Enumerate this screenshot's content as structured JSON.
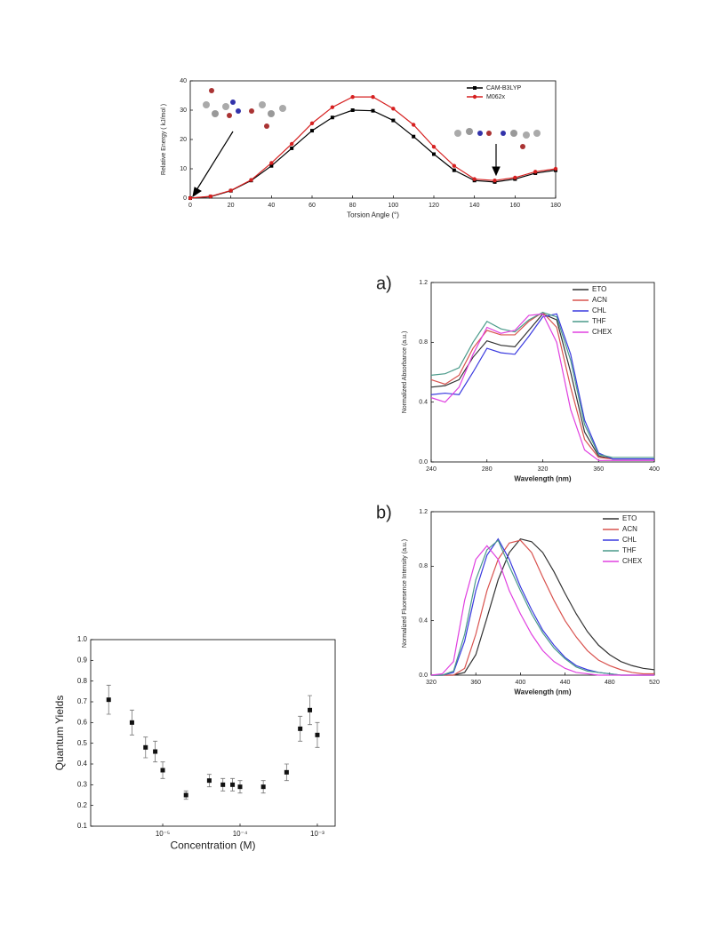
{
  "chart_data": [
    {
      "type": "line",
      "xlabel": "Torsion Angle (°)",
      "ylabel": "Relative Energy ( kJ/mol )",
      "x": [
        0,
        10,
        20,
        30,
        40,
        50,
        60,
        70,
        80,
        90,
        100,
        110,
        120,
        130,
        140,
        150,
        160,
        170,
        180
      ],
      "xlim": [
        0,
        180
      ],
      "xticks": [
        0,
        20,
        40,
        60,
        80,
        100,
        120,
        140,
        160,
        180
      ],
      "ylim": [
        0,
        40
      ],
      "yticks": [
        0,
        10,
        20,
        30,
        40
      ],
      "legend": "upper right",
      "series": [
        {
          "name": "CAM-B3LYP",
          "color": "#000000",
          "marker": "square",
          "values": [
            0,
            0.5,
            2.5,
            6,
            11,
            17,
            23,
            27.5,
            30,
            29.8,
            26.5,
            21,
            15,
            9.5,
            6,
            5.5,
            6.5,
            8.5,
            9.5
          ]
        },
        {
          "name": "M062x",
          "color": "#d62020",
          "marker": "circle",
          "values": [
            0,
            0.6,
            2.6,
            6.2,
            12,
            18.5,
            25.5,
            31,
            34.5,
            34.5,
            30.5,
            25,
            17.5,
            11,
            6.5,
            6,
            7,
            9,
            10
          ]
        }
      ]
    },
    {
      "type": "line",
      "title": "a)",
      "xlabel": "Wavelength (nm)",
      "ylabel": "Normalized Absorbance (a.u.)",
      "x": [
        240,
        250,
        260,
        270,
        280,
        290,
        300,
        310,
        320,
        330,
        340,
        350,
        360,
        370,
        380,
        390,
        400
      ],
      "xlim": [
        240,
        400
      ],
      "xticks": [
        240,
        280,
        320,
        360,
        400
      ],
      "ylim": [
        0,
        1.2
      ],
      "yticks": [
        {
          "value": 0,
          "label": "0.0"
        },
        0.4,
        0.8,
        1.2
      ],
      "legend": "upper right",
      "series": [
        {
          "name": "ETO",
          "color": "#333333",
          "values": [
            0.5,
            0.51,
            0.55,
            0.7,
            0.81,
            0.78,
            0.77,
            0.88,
            0.99,
            0.95,
            0.6,
            0.2,
            0.04,
            0.02,
            0.02,
            0.02,
            0.02
          ]
        },
        {
          "name": "ACN",
          "color": "#d9534f",
          "values": [
            0.55,
            0.52,
            0.58,
            0.76,
            0.88,
            0.85,
            0.85,
            0.94,
            1.0,
            0.9,
            0.5,
            0.15,
            0.03,
            0.02,
            0.02,
            0.02,
            0.02
          ]
        },
        {
          "name": "CHL",
          "color": "#3a3adf",
          "values": [
            0.45,
            0.46,
            0.45,
            0.6,
            0.76,
            0.73,
            0.72,
            0.84,
            0.97,
            0.99,
            0.72,
            0.28,
            0.06,
            0.02,
            0.02,
            0.02,
            0.02
          ]
        },
        {
          "name": "THF",
          "color": "#4a9a8a",
          "values": [
            0.58,
            0.59,
            0.63,
            0.8,
            0.94,
            0.89,
            0.87,
            0.95,
            1.0,
            0.97,
            0.68,
            0.25,
            0.05,
            0.03,
            0.03,
            0.03,
            0.03
          ]
        },
        {
          "name": "CHEX",
          "color": "#e040e0",
          "values": [
            0.43,
            0.4,
            0.5,
            0.72,
            0.9,
            0.86,
            0.88,
            0.98,
            0.99,
            0.8,
            0.35,
            0.08,
            0.01,
            0.01,
            0.01,
            0.01,
            0.01
          ]
        }
      ]
    },
    {
      "type": "line",
      "title": "b)",
      "xlabel": "Wavelength (nm)",
      "ylabel": "Normalized Fluoresence Intensity (a.u.)",
      "x": [
        320,
        330,
        340,
        350,
        360,
        370,
        380,
        390,
        400,
        410,
        420,
        430,
        440,
        450,
        460,
        470,
        480,
        490,
        500,
        510,
        520
      ],
      "xlim": [
        320,
        520
      ],
      "xticks": [
        320,
        360,
        400,
        440,
        480,
        520
      ],
      "ylim": [
        0,
        1.2
      ],
      "yticks": [
        {
          "value": 0,
          "label": "0.0"
        },
        0.4,
        0.8,
        1.2
      ],
      "legend": "upper right",
      "series": [
        {
          "name": "ETO",
          "color": "#333333",
          "values": [
            0,
            0,
            0,
            0.02,
            0.15,
            0.42,
            0.7,
            0.9,
            1.0,
            0.98,
            0.9,
            0.76,
            0.6,
            0.45,
            0.32,
            0.22,
            0.15,
            0.1,
            0.07,
            0.05,
            0.04
          ]
        },
        {
          "name": "ACN",
          "color": "#d9534f",
          "values": [
            0,
            0,
            0,
            0.05,
            0.3,
            0.62,
            0.85,
            0.97,
            0.99,
            0.9,
            0.72,
            0.55,
            0.4,
            0.28,
            0.18,
            0.11,
            0.07,
            0.04,
            0.02,
            0.01,
            0.01
          ]
        },
        {
          "name": "CHL",
          "color": "#3a3adf",
          "values": [
            0,
            0,
            0.02,
            0.25,
            0.62,
            0.88,
            1.0,
            0.85,
            0.65,
            0.48,
            0.33,
            0.22,
            0.13,
            0.07,
            0.04,
            0.02,
            0.01,
            0,
            0,
            0,
            0
          ]
        },
        {
          "name": "THF",
          "color": "#4a9a8a",
          "values": [
            0,
            0,
            0.03,
            0.3,
            0.7,
            0.92,
            0.99,
            0.8,
            0.62,
            0.45,
            0.31,
            0.2,
            0.12,
            0.06,
            0.03,
            0.02,
            0.01,
            0,
            0,
            0,
            0
          ]
        },
        {
          "name": "CHEX",
          "color": "#e040e0",
          "values": [
            0,
            0.01,
            0.1,
            0.55,
            0.85,
            0.95,
            0.85,
            0.62,
            0.45,
            0.3,
            0.18,
            0.1,
            0.05,
            0.02,
            0.01,
            0,
            0,
            0,
            0,
            0,
            0
          ]
        }
      ]
    },
    {
      "type": "scatter",
      "xlabel": "Concentration (M)",
      "ylabel": "Quantum Yields",
      "xscale": "log",
      "color": "#111111",
      "x": [
        2e-06,
        4e-06,
        6e-06,
        8e-06,
        1e-05,
        2e-05,
        4e-05,
        6e-05,
        8e-05,
        0.0001,
        0.0002,
        0.0004,
        0.0006,
        0.0008,
        0.001
      ],
      "values": [
        0.71,
        0.6,
        0.48,
        0.46,
        0.37,
        0.25,
        0.32,
        0.3,
        0.3,
        0.29,
        0.29,
        0.36,
        0.57,
        0.66,
        0.54
      ],
      "errors": [
        0.07,
        0.06,
        0.05,
        0.05,
        0.04,
        0.02,
        0.03,
        0.03,
        0.03,
        0.03,
        0.03,
        0.04,
        0.06,
        0.07,
        0.06
      ],
      "xlim": [
        1.17e-06,
        0.0017
      ],
      "xticks": [
        {
          "value": 1e-05,
          "label": "10⁻⁵"
        },
        {
          "value": 0.0001,
          "label": "10⁻⁴"
        },
        {
          "value": 0.001,
          "label": "10⁻³"
        }
      ],
      "ylim": [
        0.1,
        1.0
      ],
      "yticks": [
        0.1,
        0.2,
        0.3,
        0.4,
        0.5,
        0.6,
        0.7,
        0.8,
        0.9,
        {
          "value": 1.0,
          "label": "1.0"
        }
      ]
    }
  ]
}
